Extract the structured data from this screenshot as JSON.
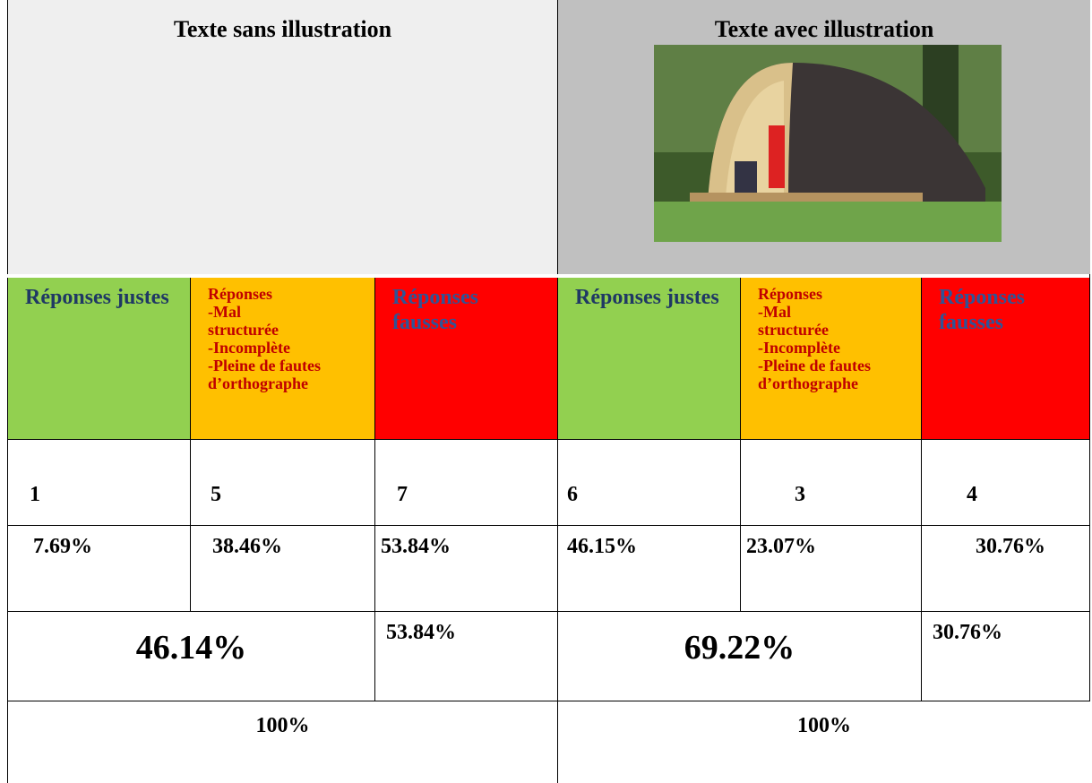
{
  "header": [
    "Texte sans illustration",
    "Texte avec illustration"
  ],
  "table": {
    "rows": [
      [
        "Réponses justes",
        "Réponses\n-Mal\nstructurée\n-Incomplète\n-Pleine de fautes\nd’orthographe",
        "Réponses fausses",
        "Réponses justes",
        "Réponses\n-Mal\nstructurée\n-Incomplète\n-Pleine de fautes\nd’orthographe",
        "Réponses fausses"
      ],
      [
        "1",
        "5",
        "7",
        "6",
        "3",
        "4"
      ],
      [
        "7.69%",
        "38.46%",
        "53.84%",
        "46.15%",
        "23.07%",
        "30.76%"
      ],
      [
        "46.14%",
        "53.84%",
        "69.22%",
        "30.76%"
      ],
      [
        "100%",
        "100%"
      ]
    ]
  }
}
